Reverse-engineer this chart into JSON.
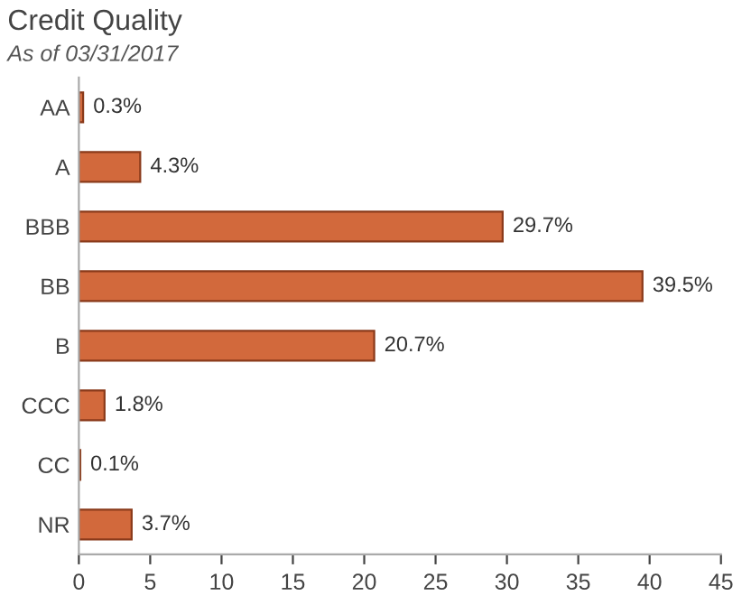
{
  "chart_data": {
    "type": "bar",
    "orientation": "horizontal",
    "title": "Credit Quality",
    "subtitle": "As of 03/31/2017",
    "categories": [
      "AA",
      "A",
      "BBB",
      "BB",
      "B",
      "CCC",
      "CC",
      "NR"
    ],
    "values": [
      0.3,
      4.3,
      29.7,
      39.5,
      20.7,
      1.8,
      0.1,
      3.7
    ],
    "value_labels": [
      "0.3%",
      "4.3%",
      "29.7%",
      "39.5%",
      "20.7%",
      "1.8%",
      "0.1%",
      "3.7%"
    ],
    "color": "#d2693c",
    "xlim": [
      0,
      45
    ],
    "xticks": [
      0,
      5,
      10,
      15,
      20,
      25,
      30,
      35,
      40,
      45
    ],
    "grid": false
  }
}
